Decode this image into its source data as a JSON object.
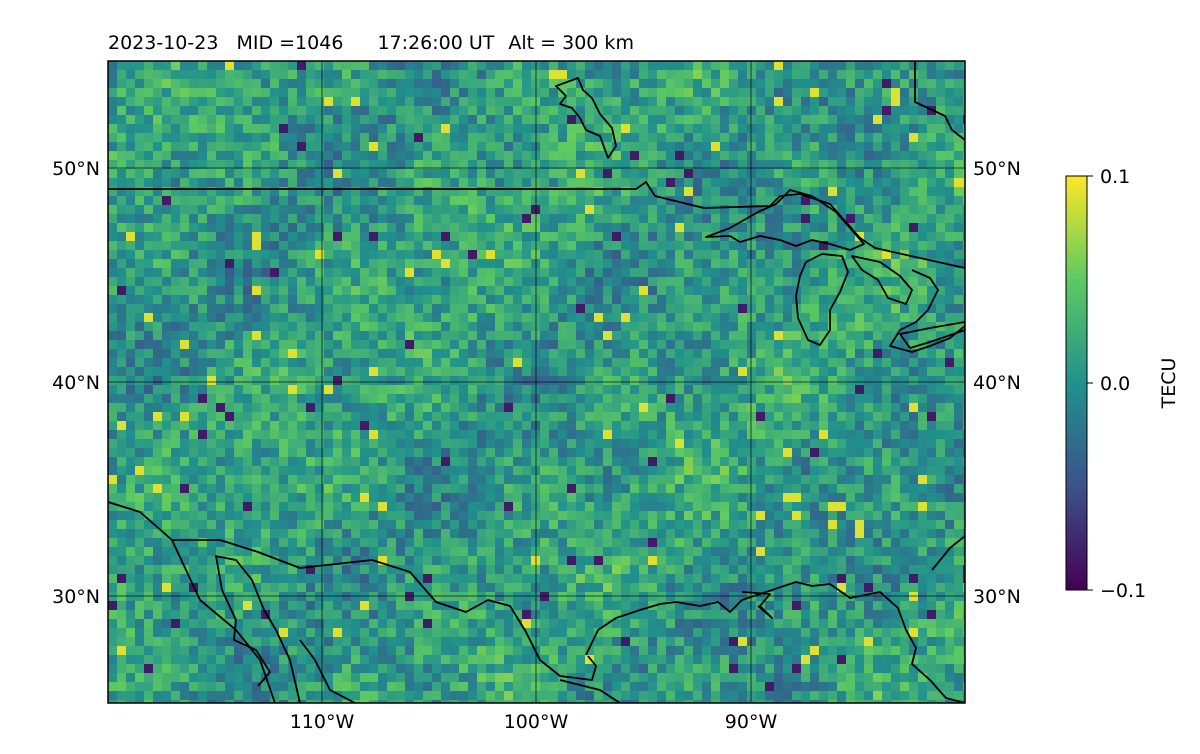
{
  "header": {
    "date": "2023-10-23",
    "mid": "MID =1046",
    "time": "17:26:00  UT",
    "alt": "Alt = 300 km"
  },
  "map": {
    "projection": "plate-carree",
    "lon_range": [
      -120,
      -80
    ],
    "lat_range": [
      25,
      55
    ],
    "lat_ticks": [
      {
        "value": 50,
        "label": "50°N"
      },
      {
        "value": 40,
        "label": "40°N"
      },
      {
        "value": 30,
        "label": "30°N"
      }
    ],
    "lon_ticks": [
      {
        "value": -110,
        "label": "110°W"
      },
      {
        "value": -100,
        "label": "100°W"
      },
      {
        "value": -90,
        "label": "90°W"
      }
    ],
    "gridlines": true,
    "field": "differential TEC"
  },
  "colorbar": {
    "label": "TECU",
    "colormap": "viridis",
    "range": [
      -0.1,
      0.1
    ],
    "ticks": [
      {
        "value": 0.1,
        "label": "0.1"
      },
      {
        "value": 0.0,
        "label": "0.0"
      },
      {
        "value": -0.1,
        "label": "−0.1"
      }
    ],
    "colors": [
      "#440154",
      "#3b528b",
      "#21918c",
      "#5ec962",
      "#fde725"
    ]
  }
}
